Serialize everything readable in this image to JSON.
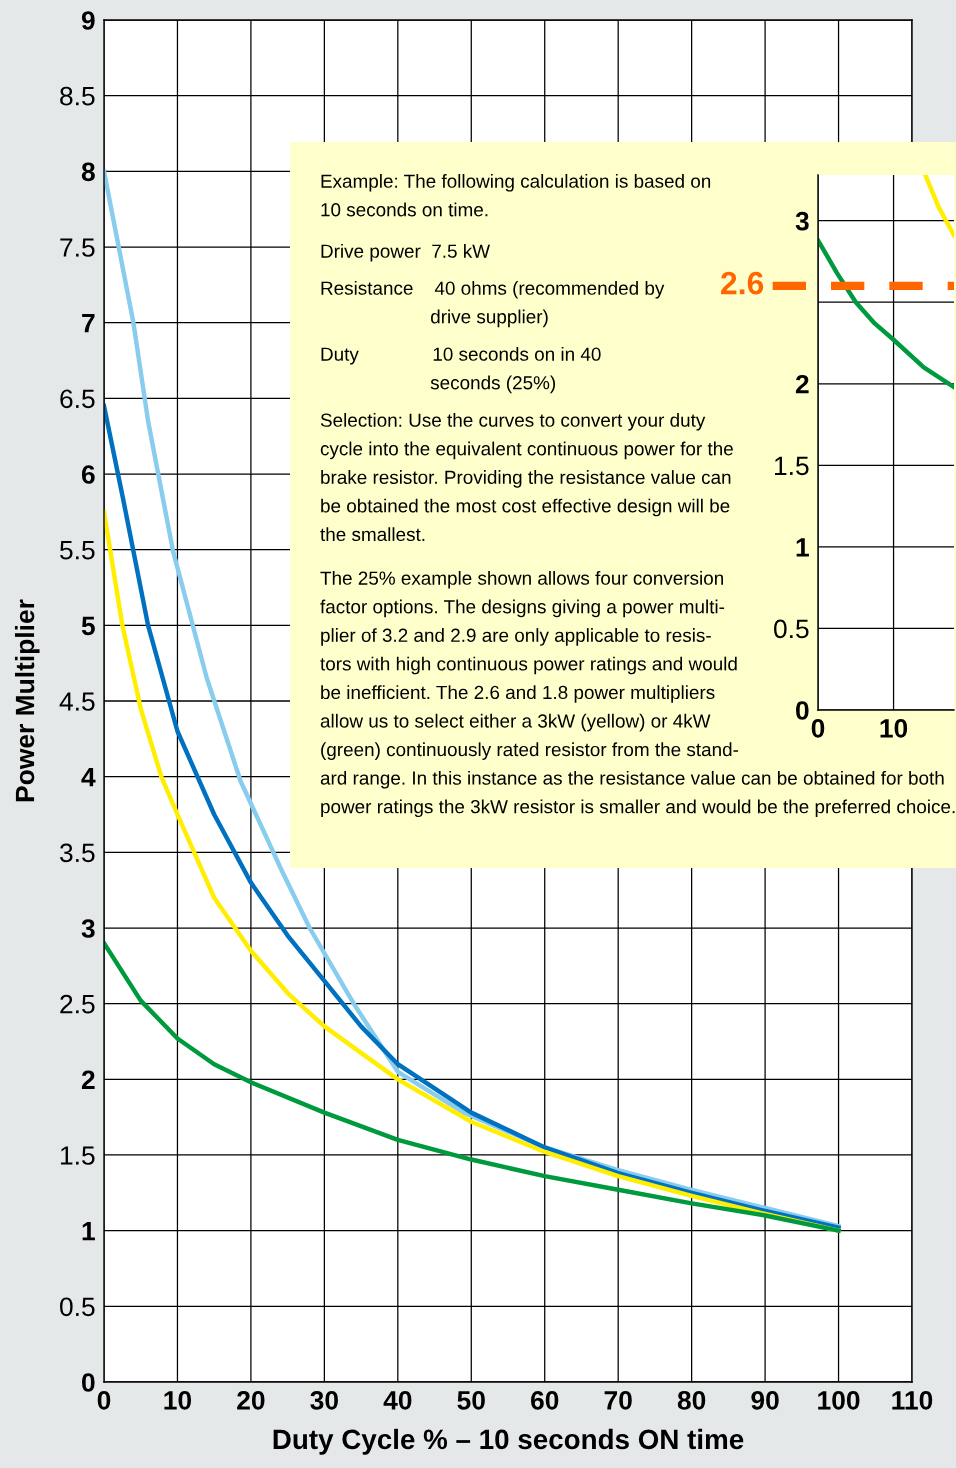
{
  "chart_data": [
    {
      "type": "line",
      "xlabel": "Duty Cycle % – 10 seconds ON time",
      "ylabel": "Power Multiplier",
      "xlim": [
        0,
        110
      ],
      "ylim": [
        0,
        9
      ],
      "xticks": [
        0,
        10,
        20,
        30,
        40,
        50,
        60,
        70,
        80,
        90,
        100,
        110
      ],
      "yticks": [
        0,
        0.5,
        1,
        1.5,
        2,
        2.5,
        3,
        3.5,
        4,
        4.5,
        5,
        5.5,
        6,
        6.5,
        7,
        7.5,
        8,
        8.5,
        9
      ],
      "grid": true,
      "legend": false,
      "line_style": "solid",
      "series": [
        {
          "color": "#88ccee",
          "x": [
            0,
            2,
            4,
            6,
            9.4,
            14,
            18.6,
            24,
            28,
            34,
            40,
            49,
            60,
            70,
            80,
            90,
            100
          ],
          "values": [
            8.0,
            7.5,
            7.0,
            6.35,
            5.49,
            4.65,
            3.97,
            3.4,
            3.0,
            2.5,
            2.05,
            1.78,
            1.55,
            1.4,
            1.27,
            1.15,
            1.03
          ]
        },
        {
          "color": "#0070c0",
          "x": [
            0,
            2.5,
            6,
            10,
            15,
            20,
            25,
            30,
            35,
            40,
            50,
            60,
            70,
            80,
            90,
            100
          ],
          "values": [
            6.45,
            5.86,
            5.0,
            4.3,
            3.75,
            3.3,
            2.95,
            2.65,
            2.35,
            2.1,
            1.78,
            1.55,
            1.38,
            1.25,
            1.13,
            1.02
          ]
        },
        {
          "color": "#ffee00",
          "x": [
            0,
            2.5,
            5,
            7.8,
            10,
            15,
            20,
            25,
            30,
            40,
            50,
            60,
            70,
            80,
            90,
            100
          ],
          "values": [
            5.75,
            5.0,
            4.45,
            4.0,
            3.75,
            3.2,
            2.85,
            2.57,
            2.35,
            2.0,
            1.72,
            1.52,
            1.36,
            1.23,
            1.11,
            1.0
          ]
        },
        {
          "color": "#009a3e",
          "x": [
            0,
            5,
            10,
            15,
            20,
            30,
            40,
            50,
            60,
            70,
            80,
            90,
            100
          ],
          "values": [
            2.9,
            2.52,
            2.27,
            2.1,
            1.98,
            1.78,
            1.6,
            1.47,
            1.36,
            1.27,
            1.18,
            1.1,
            1.0
          ]
        }
      ],
      "annotations": [
        "Example: The following calculation is based on\n10 seconds on time.",
        "Drive power  7.5 kW",
        "Resistance    40 ohms (recommended by\n                     drive supplier)",
        "Duty              10 seconds on in 40\n                     seconds (25%)",
        "Selection: Use the curves to convert your duty\ncycle into the equivalent continuous power for the\nbrake resistor. Providing the resistance value can\nbe obtained the most cost effective design will be\nthe smallest.",
        "The 25% example shown allows four conversion\nfactor options. The designs giving a power multi-\nplier of 3.2 and 2.9 are only applicable to resis-\ntors with high continuous power ratings and would\nbe inefficient. The 2.6 and 1.8 power multipliers\nallow us to select either a 3kW (yellow) or 4kW\n(green) continuously rated resistor from the stand-\nard range. In this instance as the resistance value can be obtained for both\npower ratings the 3kW resistor is smaller and would be the preferred choice."
      ]
    },
    {
      "type": "line",
      "xlim": [
        0,
        18
      ],
      "ylim": [
        0,
        3.28
      ],
      "xticks": [
        0,
        10
      ],
      "yticks": [
        0,
        0.5,
        1,
        1.5,
        2,
        {
          "value": 2.5,
          "label": null
        },
        3
      ],
      "grid": true,
      "line_style": "solid",
      "ref_lines": [
        {
          "axis": "y",
          "value": 2.6,
          "label": "2.6",
          "color": "#ff6600",
          "line_style": "dashed"
        }
      ],
      "series": [
        {
          "color": "#009a3e",
          "x": [
            0,
            2.5,
            5,
            7.5,
            10,
            14,
            18
          ],
          "values": [
            2.88,
            2.68,
            2.5,
            2.37,
            2.27,
            2.1,
            1.98
          ]
        },
        {
          "color": "#ffee00",
          "x": [
            14.2,
            16,
            18
          ],
          "values": [
            3.28,
            3.08,
            2.91
          ]
        }
      ]
    }
  ]
}
